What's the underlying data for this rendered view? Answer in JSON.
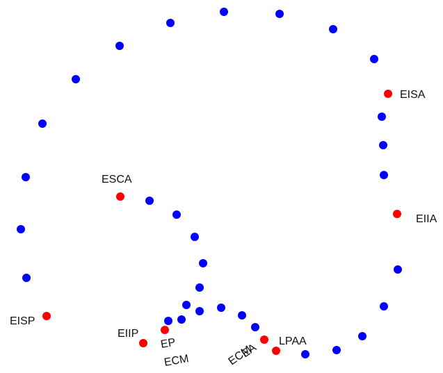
{
  "colors": {
    "background": "#ffffff",
    "path_point": "#0000ff",
    "landmark": "#ff0000",
    "text": "#111111"
  },
  "labels": {
    "eisa": "EISA",
    "eiia": "EIIA",
    "esca": "ESCA",
    "eisp": "EISP",
    "eiip": "EIIP",
    "ep": "EP",
    "ecm_left": "ECM",
    "ea": "EA",
    "ecm_right": "ECM",
    "lpaa": "LPAA"
  }
}
